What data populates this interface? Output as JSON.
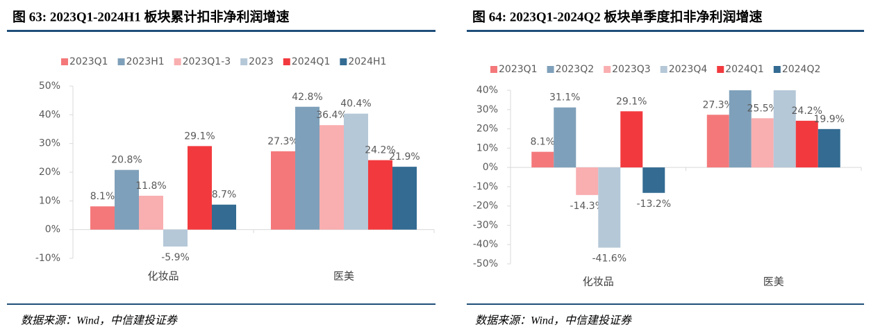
{
  "chart_data": [
    {
      "type": "bar",
      "title": "图 63: 2023Q1-2024H1 板块累计扣非净利润增速",
      "categories": [
        "化妆品",
        "医美"
      ],
      "series": [
        {
          "name": "2023Q1",
          "color": "#f4787a",
          "values": [
            8.1,
            27.3
          ],
          "value_labels": [
            "8.1%",
            "27.3%"
          ]
        },
        {
          "name": "2023H1",
          "color": "#7fa0ba",
          "values": [
            20.8,
            42.8
          ],
          "value_labels": [
            "20.8%",
            "42.8%"
          ]
        },
        {
          "name": "2023Q1-3",
          "color": "#f9aeb0",
          "values": [
            11.8,
            36.4
          ],
          "value_labels": [
            "11.8%",
            "36.4%"
          ]
        },
        {
          "name": "2023",
          "color": "#b5c8d8",
          "values": [
            -5.9,
            40.4
          ],
          "value_labels": [
            "-5.9%",
            "40.4%"
          ]
        },
        {
          "name": "2024Q1",
          "color": "#f23a3e",
          "values": [
            29.1,
            24.2
          ],
          "value_labels": [
            "29.1%",
            "24.2%"
          ]
        },
        {
          "name": "2024H1",
          "color": "#336b92",
          "values": [
            8.7,
            21.9
          ],
          "value_labels": [
            "8.7%",
            "21.9%"
          ]
        }
      ],
      "ylim": [
        -10,
        50
      ],
      "yticks": [
        {
          "value": -10,
          "label": "-10%"
        },
        {
          "value": 0,
          "label": "0%"
        },
        {
          "value": 10,
          "label": "10%"
        },
        {
          "value": 20,
          "label": "20%"
        },
        {
          "value": 30,
          "label": "30%"
        },
        {
          "value": 40,
          "label": "40%"
        },
        {
          "value": 50,
          "label": "50%"
        }
      ],
      "source": "数据来源：Wind，中信建投证券"
    },
    {
      "type": "bar",
      "title": "图 64: 2023Q1-2024Q2 板块单季度扣非净利润增速",
      "categories": [
        "化妆品",
        "医美"
      ],
      "series": [
        {
          "name": "2023Q1",
          "color": "#f4787a",
          "values": [
            8.1,
            27.3
          ],
          "value_labels": [
            "8.1%",
            "27.3%"
          ]
        },
        {
          "name": "2023Q2",
          "color": "#7fa0ba",
          "values": [
            31.1,
            40
          ],
          "value_labels": [
            "31.1%",
            null
          ]
        },
        {
          "name": "2023Q3",
          "color": "#f9aeb0",
          "values": [
            -14.3,
            25.5
          ],
          "value_labels": [
            "-14.3%",
            "25.5%"
          ]
        },
        {
          "name": "2023Q4",
          "color": "#b5c8d8",
          "values": [
            -41.6,
            40
          ],
          "value_labels": [
            "-41.6%",
            null
          ]
        },
        {
          "name": "2024Q1",
          "color": "#f23a3e",
          "values": [
            29.1,
            24.2
          ],
          "value_labels": [
            "29.1%",
            "24.2%"
          ]
        },
        {
          "name": "2024Q2",
          "color": "#336b92",
          "values": [
            -13.2,
            19.9
          ],
          "value_labels": [
            "-13.2%",
            "19.9%"
          ]
        }
      ],
      "ylim": [
        -50,
        40
      ],
      "yticks": [
        {
          "value": -50,
          "label": "-50%"
        },
        {
          "value": -40,
          "label": "-40%"
        },
        {
          "value": -30,
          "label": "-30%"
        },
        {
          "value": -20,
          "label": "-20%"
        },
        {
          "value": -10,
          "label": "-10%"
        },
        {
          "value": 0,
          "label": "0%"
        },
        {
          "value": 10,
          "label": "10%"
        },
        {
          "value": 20,
          "label": "20%"
        },
        {
          "value": 30,
          "label": "30%"
        },
        {
          "value": 40,
          "label": "40%"
        }
      ],
      "source": "数据来源：Wind，中信建投证券"
    }
  ]
}
